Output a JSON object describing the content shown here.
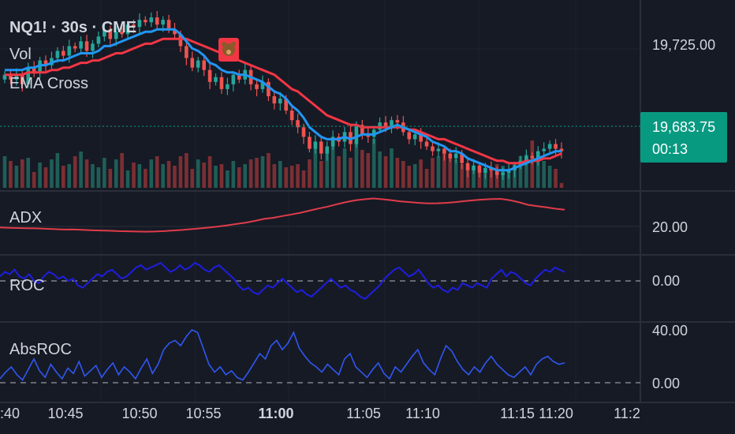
{
  "header": {
    "symbol": "NQ1! · 30s · CME",
    "volume_label": "Vol",
    "ema_label": "EMA Cross"
  },
  "colors": {
    "background": "#161a25",
    "up": "#26a69a",
    "down": "#ef5350",
    "ema_fast": "#2196f3",
    "ema_slow": "#f23645",
    "roc": "#1e1ee0",
    "absroc": "#3057f2",
    "adx": "#e03c4a",
    "price_badge": "#089981"
  },
  "chart_data": [
    {
      "type": "candlestick",
      "name": "NQ1! · 30s · CME",
      "price_axis_label": "19,725.00",
      "last_price": "19,683.75",
      "countdown": "00:13",
      "annotation_icon": "bear-icon",
      "close": [
        19716,
        19714,
        19716,
        19712,
        19719,
        19717,
        19722,
        19720,
        19723,
        19726,
        19724,
        19728,
        19727,
        19730,
        19726,
        19729,
        19732,
        19735,
        19731,
        19734,
        19733,
        19737,
        19736,
        19739,
        19738,
        19740,
        19737,
        19739,
        19735,
        19733,
        19728,
        19723,
        19719,
        19722,
        19718,
        19713,
        19715,
        19710,
        19712,
        19716,
        19714,
        19718,
        19712,
        19710,
        19713,
        19707,
        19704,
        19706,
        19701,
        19697,
        19694,
        19690,
        19685,
        19688,
        19683,
        19686,
        19690,
        19688,
        19692,
        19687,
        19695,
        19691,
        19690,
        19693,
        19696,
        19694,
        19697,
        19696,
        19692,
        19689,
        19691,
        19688,
        19686,
        19684,
        19685,
        19683,
        19681,
        19683,
        19679,
        19676,
        19678,
        19675,
        19677,
        19676,
        19674,
        19675,
        19676,
        19678,
        19680,
        19682,
        19681,
        19684,
        19685,
        19687,
        19685,
        19684
      ]
    },
    {
      "type": "line",
      "name": "EMA Cross",
      "series": [
        {
          "values": [
            19718,
            19718,
            19718,
            19718,
            19719,
            19719,
            19720,
            19720,
            19721,
            19722,
            19722,
            19723,
            19724,
            19725,
            19725,
            19725,
            19726,
            19728,
            19728,
            19729,
            19730,
            19731,
            19732,
            19733,
            19734,
            19734,
            19735,
            19735,
            19735,
            19735,
            19733,
            19730,
            19727,
            19726,
            19724,
            19721,
            19720,
            19718,
            19717,
            19717,
            19716,
            19716,
            19715,
            19714,
            19713,
            19711,
            19709,
            19708,
            19706,
            19703,
            19701,
            19698,
            19694,
            19692,
            19690,
            19689,
            19689,
            19689,
            19690,
            19689,
            19690,
            19691,
            19691,
            19691,
            19692,
            19693,
            19694,
            19695,
            19694,
            19693,
            19692,
            19691,
            19690,
            19688,
            19687,
            19686,
            19684,
            19684,
            19683,
            19681,
            19680,
            19679,
            19678,
            19677,
            19676,
            19676,
            19676,
            19677,
            19678,
            19679,
            19680,
            19681,
            19682,
            19683,
            19684,
            19684
          ]
        },
        {
          "values": [
            19716,
            19716,
            19716,
            19716,
            19717,
            19717,
            19717,
            19717,
            19718,
            19718,
            19719,
            19719,
            19720,
            19721,
            19721,
            19722,
            19722,
            19723,
            19724,
            19725,
            19725,
            19726,
            19727,
            19728,
            19729,
            19729,
            19730,
            19731,
            19731,
            19731,
            19731,
            19731,
            19730,
            19729,
            19728,
            19727,
            19726,
            19725,
            19724,
            19723,
            19722,
            19721,
            19720,
            19719,
            19718,
            19717,
            19716,
            19714,
            19712,
            19710,
            19709,
            19707,
            19705,
            19703,
            19701,
            19699,
            19698,
            19697,
            19696,
            19695,
            19695,
            19694,
            19694,
            19694,
            19694,
            19694,
            19694,
            19694,
            19694,
            19693,
            19693,
            19692,
            19691,
            19690,
            19689,
            19689,
            19688,
            19687,
            19686,
            19685,
            19684,
            19683,
            19682,
            19681,
            19680,
            19680,
            19679,
            19679,
            19679,
            19680,
            19680,
            19680,
            19681,
            19681,
            19682,
            19683
          ]
        }
      ]
    },
    {
      "type": "bar",
      "name": "Vol",
      "values": [
        40,
        34,
        28,
        36,
        38,
        20,
        32,
        26,
        36,
        44,
        28,
        30,
        40,
        46,
        36,
        30,
        26,
        38,
        24,
        36,
        44,
        22,
        32,
        30,
        24,
        36,
        40,
        30,
        34,
        28,
        40,
        44,
        24,
        36,
        32,
        40,
        28,
        30,
        22,
        34,
        26,
        30,
        36,
        38,
        40,
        44,
        30,
        34,
        26,
        28,
        30,
        22,
        36,
        50,
        34,
        44,
        58,
        40,
        50,
        38,
        56,
        48,
        44,
        62,
        46,
        40,
        50,
        38,
        34,
        28,
        30,
        36,
        24,
        38,
        40,
        50,
        42,
        36,
        30,
        26,
        24,
        20,
        22,
        26,
        30,
        28,
        24,
        32,
        40,
        42,
        60,
        38,
        34,
        28,
        24,
        6
      ]
    },
    {
      "type": "line",
      "name": "ADX",
      "axis_label": "20.00",
      "values": [
        19.5,
        19.3,
        19.2,
        19.1,
        19.0,
        18.8,
        18.6,
        18.4,
        18.5,
        18.3,
        18.1,
        17.9,
        17.8,
        17.6,
        17.5,
        17.4,
        17.3,
        17.4,
        17.6,
        17.9,
        18.2,
        18.6,
        19.0,
        19.5,
        20.0,
        20.6,
        21.3,
        22.0,
        22.9,
        23.9,
        24.5,
        25.4,
        26.2,
        27.1,
        28.2,
        29.3,
        30.3,
        31.5,
        32.6,
        33.5,
        34.1,
        34.5,
        34.1,
        33.6,
        33.0,
        32.6,
        32.2,
        31.9,
        32.0,
        32.2,
        32.6,
        33.1,
        33.6,
        33.9,
        34.2,
        34.3,
        33.6,
        32.5,
        31.2,
        30.5,
        29.9,
        29.2,
        28.7
      ]
    },
    {
      "type": "line",
      "name": "ROC",
      "axis_label": "0.00",
      "values": [
        2,
        4,
        3,
        5,
        2,
        1,
        3,
        0,
        -1,
        2,
        4,
        3,
        1,
        2,
        0,
        1,
        -2,
        -3,
        -1,
        1,
        3,
        2,
        4,
        5,
        3,
        1,
        2,
        4,
        6,
        7,
        5,
        6,
        7,
        8,
        6,
        4,
        5,
        7,
        5,
        6,
        8,
        7,
        5,
        4,
        6,
        7,
        5,
        3,
        1,
        -2,
        -4,
        -3,
        -5,
        -6,
        -4,
        -2,
        -3,
        -1,
        1,
        -1,
        -3,
        -5,
        -4,
        -6,
        -7,
        -5,
        -3,
        -1,
        1,
        -1,
        -3,
        -2,
        -4,
        -5,
        -7,
        -8,
        -6,
        -4,
        -2,
        1,
        3,
        5,
        6,
        4,
        2,
        3,
        5,
        2,
        -1,
        -3,
        -2,
        -4,
        -5,
        -3,
        -4,
        -1,
        -2,
        -3,
        -1,
        -2,
        -3,
        1,
        3,
        5,
        2,
        4,
        3,
        1,
        -1,
        -2,
        1,
        3,
        5,
        4,
        6,
        5,
        4
      ]
    },
    {
      "type": "line",
      "name": "AbsROC",
      "axis_labels": [
        "40.00",
        "0.00"
      ],
      "values": [
        3,
        8,
        12,
        6,
        2,
        10,
        18,
        9,
        4,
        14,
        8,
        3,
        11,
        7,
        16,
        5,
        9,
        13,
        4,
        10,
        15,
        6,
        12,
        8,
        3,
        11,
        18,
        7,
        14,
        25,
        30,
        32,
        28,
        35,
        40,
        38,
        26,
        14,
        8,
        12,
        6,
        9,
        4,
        2,
        8,
        15,
        22,
        18,
        28,
        32,
        25,
        30,
        38,
        26,
        20,
        15,
        12,
        8,
        14,
        10,
        6,
        18,
        22,
        12,
        8,
        4,
        10,
        15,
        7,
        3,
        12,
        8,
        14,
        20,
        25,
        15,
        10,
        6,
        18,
        28,
        24,
        16,
        10,
        6,
        12,
        8,
        15,
        20,
        14,
        10,
        6,
        4,
        8,
        12,
        6,
        14,
        18,
        20,
        16,
        14,
        15
      ]
    }
  ],
  "time_axis": {
    "labels": [
      ":40",
      "10:45",
      "10:50",
      "10:55",
      "11:00",
      "11:05",
      "11:10",
      "11:15",
      "11:20",
      "11:2"
    ],
    "bold_label": "11:00"
  }
}
